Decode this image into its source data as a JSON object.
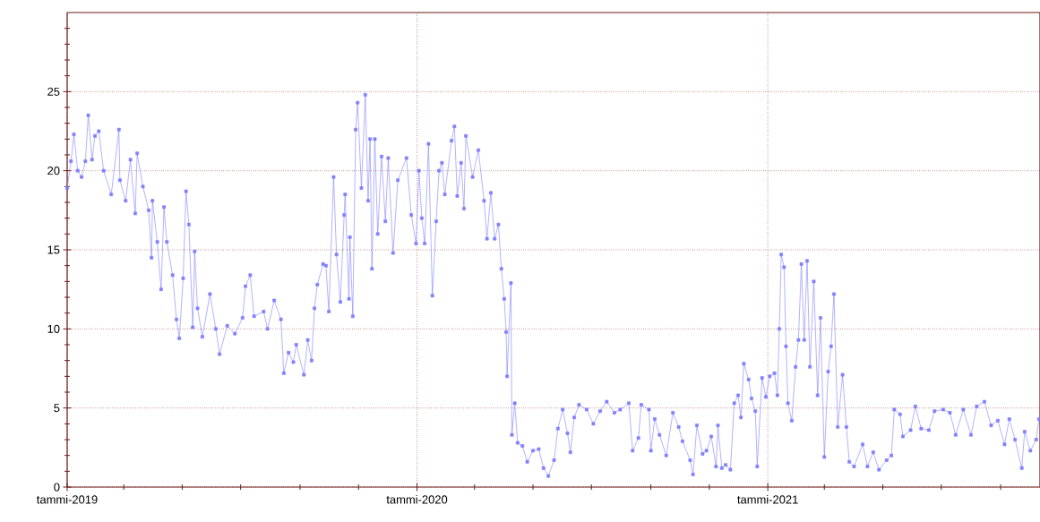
{
  "chart_data": {
    "type": "line",
    "color": "#7f7fff",
    "marker": "square",
    "line_style": "solid",
    "grid": true,
    "xlim": [
      "2019-01-01",
      "2021-10-12"
    ],
    "xticks": [
      {
        "value": "2019-01-01",
        "label": "tammi-2019"
      },
      {
        "value": "2019-03-01",
        "label": null
      },
      {
        "value": "2019-05-01",
        "label": null
      },
      {
        "value": "2019-07-01",
        "label": null
      },
      {
        "value": "2019-09-01",
        "label": null
      },
      {
        "value": "2019-11-01",
        "label": null
      },
      {
        "value": "2020-01-01",
        "label": "tammi-2020"
      },
      {
        "value": "2020-03-01",
        "label": null
      },
      {
        "value": "2020-05-01",
        "label": null
      },
      {
        "value": "2020-07-01",
        "label": null
      },
      {
        "value": "2020-09-01",
        "label": null
      },
      {
        "value": "2020-11-01",
        "label": null
      },
      {
        "value": "2021-01-01",
        "label": "tammi-2021"
      },
      {
        "value": "2021-03-01",
        "label": null
      },
      {
        "value": "2021-05-01",
        "label": null
      },
      {
        "value": "2021-07-01",
        "label": null
      },
      {
        "value": "2021-09-01",
        "label": null
      }
    ],
    "ylim": [
      0,
      30
    ],
    "yticks": [
      0,
      {
        "value": 1,
        "label": null
      },
      {
        "value": 2,
        "label": null
      },
      {
        "value": 3,
        "label": null
      },
      {
        "value": 4,
        "label": null
      },
      5,
      {
        "value": 6,
        "label": null
      },
      {
        "value": 7,
        "label": null
      },
      {
        "value": 8,
        "label": null
      },
      {
        "value": 9,
        "label": null
      },
      10,
      {
        "value": 11,
        "label": null
      },
      {
        "value": 12,
        "label": null
      },
      {
        "value": 13,
        "label": null
      },
      {
        "value": 14,
        "label": null
      },
      15,
      {
        "value": 16,
        "label": null
      },
      {
        "value": 17,
        "label": null
      },
      {
        "value": 18,
        "label": null
      },
      {
        "value": 19,
        "label": null
      },
      20,
      {
        "value": 21,
        "label": null
      },
      {
        "value": 22,
        "label": null
      },
      {
        "value": 23,
        "label": null
      },
      {
        "value": 24,
        "label": null
      },
      25,
      {
        "value": 26,
        "label": null
      },
      {
        "value": 27,
        "label": null
      },
      {
        "value": 28,
        "label": null
      },
      {
        "value": 29,
        "label": null
      }
    ],
    "x": [
      "2019-01-01",
      "2019-01-05",
      "2019-01-08",
      "2019-01-12",
      "2019-01-16",
      "2019-01-20",
      "2019-01-23",
      "2019-01-27",
      "2019-01-30",
      "2019-02-03",
      "2019-02-08",
      "2019-02-16",
      "2019-02-24",
      "2019-02-25",
      "2019-03-03",
      "2019-03-08",
      "2019-03-13",
      "2019-03-15",
      "2019-03-21",
      "2019-03-27",
      "2019-03-30",
      "2019-03-31",
      "2019-04-05",
      "2019-04-09",
      "2019-04-12",
      "2019-04-15",
      "2019-04-21",
      "2019-04-25",
      "2019-04-28",
      "2019-05-02",
      "2019-05-05",
      "2019-05-08",
      "2019-05-12",
      "2019-05-14",
      "2019-05-17",
      "2019-05-22",
      "2019-05-30",
      "2019-06-05",
      "2019-06-09",
      "2019-06-17",
      "2019-06-25",
      "2019-07-03",
      "2019-07-06",
      "2019-07-11",
      "2019-07-15",
      "2019-07-25",
      "2019-07-29",
      "2019-08-05",
      "2019-08-12",
      "2019-08-15",
      "2019-08-20",
      "2019-08-25",
      "2019-08-28",
      "2019-09-05",
      "2019-09-09",
      "2019-09-13",
      "2019-09-16",
      "2019-09-19",
      "2019-09-25",
      "2019-09-28",
      "2019-10-01",
      "2019-10-06",
      "2019-10-09",
      "2019-10-13",
      "2019-10-17",
      "2019-10-18",
      "2019-10-22",
      "2019-10-23",
      "2019-10-26",
      "2019-10-29",
      "2019-10-31",
      "2019-11-04",
      "2019-11-08",
      "2019-11-11",
      "2019-11-13",
      "2019-11-15",
      "2019-11-18",
      "2019-11-21",
      "2019-11-25",
      "2019-11-29",
      "2019-12-02",
      "2019-12-07",
      "2019-12-12",
      "2019-12-21",
      "2019-12-26",
      "2019-12-31",
      "2020-01-03",
      "2020-01-06",
      "2020-01-09",
      "2020-01-13",
      "2020-01-17",
      "2020-01-21",
      "2020-01-24",
      "2020-01-27",
      "2020-01-30",
      "2020-02-06",
      "2020-02-09",
      "2020-02-12",
      "2020-02-16",
      "2020-02-19",
      "2020-02-21",
      "2020-02-28",
      "2020-03-05",
      "2020-03-11",
      "2020-03-14",
      "2020-03-18",
      "2020-03-22",
      "2020-03-26",
      "2020-03-29",
      "2020-04-01",
      "2020-04-03",
      "2020-04-04",
      "2020-04-08",
      "2020-04-09",
      "2020-04-12",
      "2020-04-15",
      "2020-04-20",
      "2020-04-25",
      "2020-05-01",
      "2020-05-07",
      "2020-05-12",
      "2020-05-17",
      "2020-05-23",
      "2020-05-27",
      "2020-06-01",
      "2020-06-06",
      "2020-06-09",
      "2020-06-13",
      "2020-06-18",
      "2020-06-26",
      "2020-07-03",
      "2020-07-10",
      "2020-07-17",
      "2020-07-25",
      "2020-07-31",
      "2020-08-09",
      "2020-08-13",
      "2020-08-19",
      "2020-08-22",
      "2020-08-30",
      "2020-09-01",
      "2020-09-05",
      "2020-09-10",
      "2020-09-17",
      "2020-09-24",
      "2020-09-30",
      "2020-10-04",
      "2020-10-12",
      "2020-10-15",
      "2020-10-19",
      "2020-10-25",
      "2020-10-29",
      "2020-11-03",
      "2020-11-08",
      "2020-11-10",
      "2020-11-14",
      "2020-11-18",
      "2020-11-23",
      "2020-11-27",
      "2020-12-01",
      "2020-12-04",
      "2020-12-07",
      "2020-12-12",
      "2020-12-15",
      "2020-12-19",
      "2020-12-21",
      "2020-12-26",
      "2020-12-30",
      "2021-01-03",
      "2021-01-08",
      "2021-01-11",
      "2021-01-13",
      "2021-01-15",
      "2021-01-18",
      "2021-01-20",
      "2021-01-22",
      "2021-01-26",
      "2021-01-30",
      "2021-02-02",
      "2021-02-05",
      "2021-02-08",
      "2021-02-11",
      "2021-02-14",
      "2021-02-18",
      "2021-02-22",
      "2021-02-25",
      "2021-03-01",
      "2021-03-05",
      "2021-03-08",
      "2021-03-11",
      "2021-03-15",
      "2021-03-20",
      "2021-03-24",
      "2021-03-27",
      "2021-04-01",
      "2021-04-10",
      "2021-04-15",
      "2021-04-21",
      "2021-04-27",
      "2021-05-05",
      "2021-05-10",
      "2021-05-13",
      "2021-05-19",
      "2021-05-22",
      "2021-05-30",
      "2021-06-04",
      "2021-06-10",
      "2021-06-18",
      "2021-06-24",
      "2021-07-03",
      "2021-07-10",
      "2021-07-16",
      "2021-07-24",
      "2021-08-01",
      "2021-08-07",
      "2021-08-15",
      "2021-08-22",
      "2021-08-29",
      "2021-09-05",
      "2021-09-10",
      "2021-09-16",
      "2021-09-23",
      "2021-09-26",
      "2021-10-02",
      "2021-10-08",
      "2021-10-11"
    ],
    "values": [
      18.9,
      20.6,
      22.3,
      20.0,
      19.6,
      20.6,
      23.5,
      20.7,
      22.2,
      22.5,
      20.0,
      18.5,
      22.6,
      19.4,
      18.1,
      20.7,
      17.3,
      21.1,
      19.0,
      17.5,
      14.5,
      18.1,
      15.5,
      12.5,
      17.7,
      15.5,
      13.4,
      10.6,
      9.4,
      13.2,
      18.7,
      16.6,
      10.1,
      14.9,
      11.3,
      9.5,
      12.2,
      10.0,
      8.4,
      10.2,
      9.7,
      10.7,
      12.7,
      13.4,
      10.8,
      11.1,
      10.0,
      11.8,
      10.6,
      7.2,
      8.5,
      7.9,
      9.0,
      7.1,
      9.3,
      8.0,
      11.3,
      12.8,
      14.1,
      14.0,
      11.1,
      19.6,
      14.7,
      11.7,
      17.2,
      18.5,
      11.9,
      15.8,
      10.8,
      22.6,
      24.3,
      18.9,
      24.8,
      18.1,
      22.0,
      13.8,
      22.0,
      16.0,
      20.9,
      16.8,
      20.8,
      14.8,
      19.4,
      20.8,
      17.2,
      15.4,
      20.0,
      17.0,
      15.4,
      21.7,
      12.1,
      16.8,
      20.0,
      20.5,
      18.5,
      21.9,
      22.8,
      18.4,
      20.5,
      17.6,
      22.2,
      19.6,
      21.3,
      18.1,
      15.7,
      18.6,
      15.7,
      16.6,
      13.8,
      11.9,
      9.8,
      7.0,
      12.9,
      3.3,
      5.3,
      2.8,
      2.6,
      1.6,
      2.3,
      2.4,
      1.2,
      0.7,
      1.7,
      3.7,
      4.9,
      3.4,
      2.2,
      4.4,
      5.2,
      4.9,
      4.0,
      4.8,
      5.4,
      4.7,
      4.9,
      5.3,
      2.3,
      3.1,
      5.2,
      4.9,
      2.3,
      4.3,
      3.3,
      2.0,
      4.7,
      3.8,
      2.9,
      1.7,
      0.8,
      3.9,
      2.1,
      2.3,
      3.2,
      1.3,
      3.9,
      1.2,
      1.4,
      1.1,
      5.3,
      5.8,
      4.4,
      7.8,
      6.8,
      5.6,
      4.8,
      1.3,
      6.9,
      5.7,
      7.0,
      7.2,
      5.8,
      10.0,
      14.7,
      13.9,
      8.9,
      5.3,
      4.2,
      7.6,
      9.3,
      14.1,
      9.3,
      14.3,
      7.6,
      13.0,
      5.8,
      10.7,
      1.9,
      7.3,
      8.9,
      12.2,
      3.8,
      7.1,
      3.8,
      1.6,
      1.3,
      2.7,
      1.3,
      2.2,
      1.1,
      1.7,
      2.0,
      4.9,
      4.6,
      3.2,
      3.6,
      5.1,
      3.7,
      3.6,
      4.8,
      4.9,
      4.7,
      3.3,
      4.9,
      3.3,
      5.1,
      5.4,
      3.9,
      4.2,
      2.7,
      4.3,
      3.0,
      1.2,
      3.5,
      2.3,
      3.0,
      4.3
    ]
  }
}
